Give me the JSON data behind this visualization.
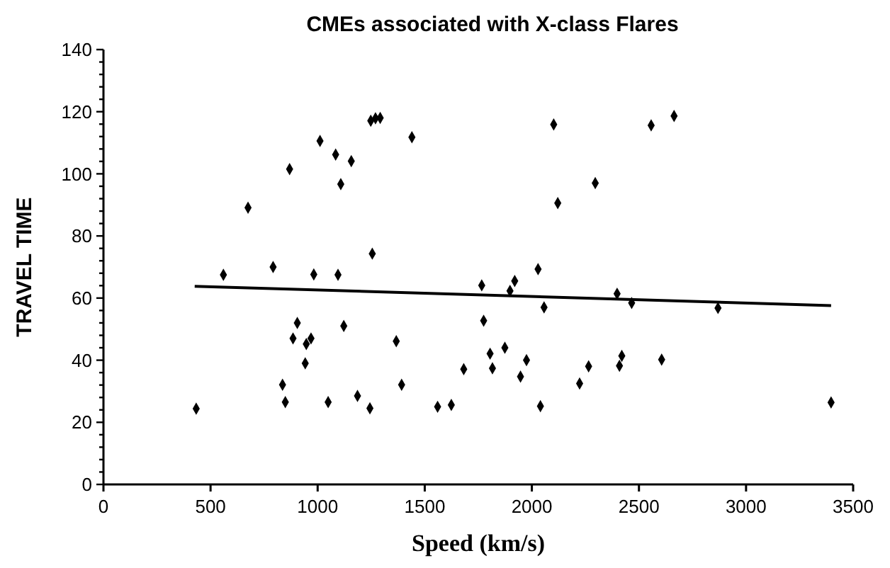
{
  "chart_data": {
    "type": "scatter",
    "title": "CMEs associated with X-class Flares",
    "xlabel": "Speed (km/s)",
    "ylabel": "TRAVEL TIME",
    "xlim": [
      0,
      3500
    ],
    "xticks": [
      0,
      500,
      1000,
      1500,
      2000,
      2500,
      3000,
      3500
    ],
    "ylim": [
      0,
      140
    ],
    "yticks": [
      0,
      {
        "value": 4,
        "label": null
      },
      {
        "value": 8,
        "label": null
      },
      {
        "value": 12,
        "label": null
      },
      {
        "value": 16,
        "label": null
      },
      20,
      {
        "value": 24,
        "label": null
      },
      {
        "value": 28,
        "label": null
      },
      {
        "value": 32,
        "label": null
      },
      {
        "value": 36,
        "label": null
      },
      40,
      {
        "value": 44,
        "label": null
      },
      {
        "value": 48,
        "label": null
      },
      {
        "value": 52,
        "label": null
      },
      {
        "value": 56,
        "label": null
      },
      60,
      {
        "value": 64,
        "label": null
      },
      {
        "value": 68,
        "label": null
      },
      {
        "value": 72,
        "label": null
      },
      {
        "value": 76,
        "label": null
      },
      80,
      {
        "value": 84,
        "label": null
      },
      {
        "value": 88,
        "label": null
      },
      {
        "value": 92,
        "label": null
      },
      {
        "value": 96,
        "label": null
      },
      100,
      {
        "value": 104,
        "label": null
      },
      {
        "value": 108,
        "label": null
      },
      {
        "value": 112,
        "label": null
      },
      {
        "value": 116,
        "label": null
      },
      120,
      {
        "value": 124,
        "label": null
      },
      {
        "value": 128,
        "label": null
      },
      {
        "value": 132,
        "label": null
      },
      {
        "value": 136,
        "label": null
      },
      140
    ],
    "grid": false,
    "marker": "diamond",
    "series": [
      {
        "color": "#000000",
        "x": [
          433,
          560,
          792,
          836,
          849,
          885,
          905,
          942,
          947,
          969,
          982,
          1049,
          1095,
          1122,
          1186,
          1244,
          1255,
          1367,
          1392,
          1560,
          1624,
          1682,
          1766,
          1775,
          1805,
          1816,
          1874,
          1898,
          1920,
          1947,
          1975,
          2029,
          2040,
          2057,
          2223,
          2265,
          2398,
          2409,
          2420,
          2466,
          2606,
          2869,
          3397,
          675,
          869,
          1011,
          1084,
          1108,
          1157,
          1248,
          1270,
          1292,
          1440,
          2102,
          2121,
          2296,
          2557,
          2664
        ],
        "values": [
          24.4,
          67.5,
          70,
          32.1,
          26.5,
          47,
          52,
          39,
          45.2,
          47,
          67.6,
          26.5,
          67.5,
          51,
          28.5,
          24.5,
          74.3,
          46.1,
          32.1,
          25,
          25.6,
          37.1,
          64.1,
          52.7,
          42.1,
          37.4,
          44,
          62.3,
          65.5,
          34.7,
          40,
          69.3,
          25.2,
          57,
          32.5,
          38,
          61.4,
          38.2,
          41.4,
          58.4,
          40.2,
          56.8,
          26.4,
          89.1,
          101.5,
          110.6,
          106.2,
          96.7,
          104.1,
          117.1,
          117.9,
          118,
          111.8,
          115.9,
          90.6,
          97,
          115.6,
          118.6
        ]
      },
      {
        "type": "line",
        "color": "#000000",
        "marker": "none",
        "x": [
          426,
          3397
        ],
        "values": [
          63.8,
          57.6
        ]
      }
    ]
  }
}
